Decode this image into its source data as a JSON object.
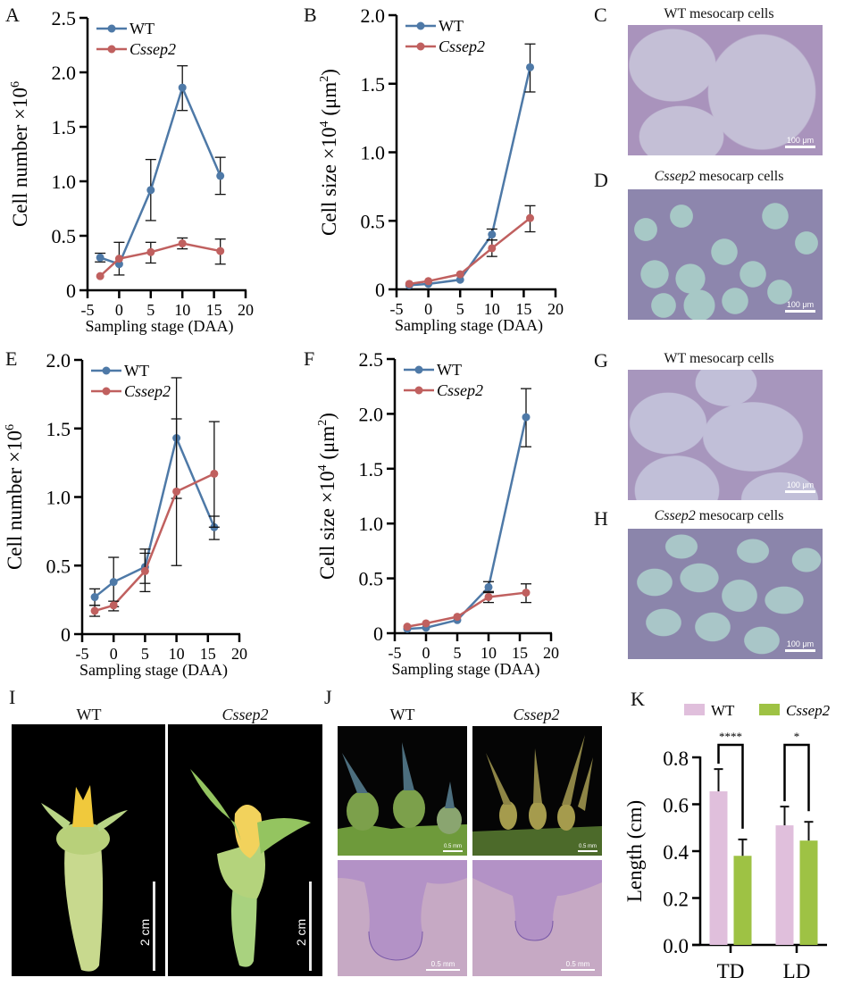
{
  "panels": {
    "A": "A",
    "B": "B",
    "C": "C",
    "D": "D",
    "E": "E",
    "F": "F",
    "G": "G",
    "H": "H",
    "I": "I",
    "J": "J",
    "K": "K"
  },
  "colors": {
    "wt": "#4e79a7",
    "mutant": "#c0605f",
    "bar_wt": "#e0bfdc",
    "bar_mutant": "#9ec244"
  },
  "legend": {
    "wt": "WT",
    "mutant": "Cssep2"
  },
  "micrographs": {
    "C": {
      "title": "WT mesocarp cells",
      "scale": "100 μm"
    },
    "D": {
      "title_italic": "Cssep2",
      "title_rest": " mesocarp cells",
      "scale": "100 μm"
    },
    "G": {
      "title": "WT mesocarp cells",
      "scale": "100 μm"
    },
    "H": {
      "title_italic": "Cssep2",
      "title_rest": " mesocarp cells",
      "scale": "100 μm"
    }
  },
  "photos_I": {
    "wt_label": "WT",
    "mutant_label": "Cssep2",
    "scale": "2 cm"
  },
  "photos_J": {
    "wt_label": "WT",
    "mutant_label": "Cssep2",
    "scale_top": "0.5 mm",
    "scale_bottom": "0.5 mm"
  },
  "chart_data": [
    {
      "id": "A",
      "type": "line",
      "xlabel": "Sampling stage (DAA)",
      "ylabel": "Cell number ×10^6",
      "ylabel_main": "Cell number ×10",
      "ylabel_sup": "6",
      "ylabel_tail": "",
      "xlim": [
        -5,
        20
      ],
      "ylim": [
        0,
        2.5
      ],
      "xticks": [
        -5,
        0,
        5,
        10,
        15,
        20
      ],
      "xtick_labels": [
        "-5",
        "0",
        "5",
        "10",
        "15",
        "20"
      ],
      "yticks": [
        0,
        0.5,
        1.0,
        1.5,
        2.0,
        2.5
      ],
      "ytick_labels": [
        "0",
        "0.5",
        "1.0",
        "1.5",
        "2.0",
        "2.5"
      ],
      "x": [
        -3,
        0,
        5,
        10,
        16
      ],
      "series": [
        {
          "name": "WT",
          "values": [
            0.3,
            0.24,
            0.92,
            1.86,
            1.05
          ],
          "err_low": [
            0.26,
            0.14,
            0.64,
            1.65,
            0.88
          ],
          "err_high": [
            0.34,
            0.44,
            1.2,
            2.06,
            1.22
          ]
        },
        {
          "name": "Cssep2",
          "values": [
            0.13,
            0.29,
            0.35,
            0.43,
            0.36
          ],
          "err_low": [
            0.13,
            0.29,
            0.25,
            0.38,
            0.24
          ],
          "err_high": [
            0.13,
            0.29,
            0.44,
            0.48,
            0.47
          ]
        }
      ],
      "legend_position": "top-left"
    },
    {
      "id": "B",
      "type": "line",
      "xlabel": "Sampling stage (DAA)",
      "ylabel": "Cell size ×10^4 (μm^2)",
      "ylabel_main": "Cell size ×10",
      "ylabel_sup": "4",
      "ylabel_tail": " (μm",
      "ylabel_sup2": "2",
      "ylabel_close": ")",
      "xlim": [
        -5,
        20
      ],
      "ylim": [
        0,
        2.0
      ],
      "xticks": [
        -5,
        0,
        5,
        10,
        15,
        20
      ],
      "xtick_labels": [
        "-5",
        "0",
        "5",
        "10",
        "15",
        "20"
      ],
      "yticks": [
        0,
        0.5,
        1.0,
        1.5,
        2.0
      ],
      "ytick_labels": [
        "0",
        "0.5",
        "1.0",
        "1.5",
        "2.0"
      ],
      "x": [
        -3,
        0,
        5,
        10,
        16
      ],
      "series": [
        {
          "name": "WT",
          "values": [
            0.03,
            0.04,
            0.07,
            0.4,
            1.62
          ],
          "err_low": [
            0.03,
            0.04,
            0.07,
            0.36,
            1.44
          ],
          "err_high": [
            0.03,
            0.04,
            0.07,
            0.44,
            1.79
          ]
        },
        {
          "name": "Cssep2",
          "values": [
            0.04,
            0.06,
            0.11,
            0.3,
            0.52
          ],
          "err_low": [
            0.04,
            0.06,
            0.11,
            0.24,
            0.42
          ],
          "err_high": [
            0.04,
            0.06,
            0.11,
            0.36,
            0.61
          ]
        }
      ],
      "legend_position": "top-left"
    },
    {
      "id": "E",
      "type": "line",
      "xlabel": "Sampling stage (DAA)",
      "ylabel": "Cell number ×10^6",
      "ylabel_main": "Cell number ×10",
      "ylabel_sup": "6",
      "ylabel_tail": "",
      "xlim": [
        -5,
        20
      ],
      "ylim": [
        0,
        2.0
      ],
      "xticks": [
        -5,
        0,
        5,
        10,
        15,
        20
      ],
      "xtick_labels": [
        "-5",
        "0",
        "5",
        "10",
        "15",
        "20"
      ],
      "yticks": [
        0,
        0.5,
        1.0,
        1.5,
        2.0
      ],
      "ytick_labels": [
        "0",
        "0.5",
        "1.0",
        "1.5",
        "2.0"
      ],
      "x": [
        -3,
        0,
        5,
        10,
        16
      ],
      "series": [
        {
          "name": "WT",
          "values": [
            0.27,
            0.38,
            0.49,
            1.43,
            0.78
          ],
          "err_low": [
            0.21,
            0.2,
            0.37,
            0.99,
            0.69
          ],
          "err_high": [
            0.33,
            0.56,
            0.62,
            1.87,
            0.86
          ]
        },
        {
          "name": "Cssep2",
          "values": [
            0.17,
            0.21,
            0.46,
            1.04,
            1.17
          ],
          "err_low": [
            0.13,
            0.17,
            0.31,
            0.5,
            0.78
          ],
          "err_high": [
            0.21,
            0.24,
            0.59,
            1.57,
            1.55
          ]
        }
      ],
      "legend_position": "top-left"
    },
    {
      "id": "F",
      "type": "line",
      "xlabel": "Sampling stage (DAA)",
      "ylabel": "Cell size ×10^4 (μm^2)",
      "ylabel_main": "Cell size ×10",
      "ylabel_sup": "4",
      "ylabel_tail": " (μm",
      "ylabel_sup2": "2",
      "ylabel_close": ")",
      "xlim": [
        -5,
        20
      ],
      "ylim": [
        0,
        2.5
      ],
      "xticks": [
        -5,
        0,
        5,
        10,
        15,
        20
      ],
      "xtick_labels": [
        "-5",
        "0",
        "5",
        "10",
        "15",
        "20"
      ],
      "yticks": [
        0,
        0.5,
        1.0,
        1.5,
        2.0,
        2.5
      ],
      "ytick_labels": [
        "0",
        "0.5",
        "1.0",
        "1.5",
        "2.0",
        "2.5"
      ],
      "x": [
        -3,
        0,
        5,
        10,
        16
      ],
      "series": [
        {
          "name": "WT",
          "values": [
            0.04,
            0.05,
            0.12,
            0.42,
            1.97
          ],
          "err_low": [
            0.04,
            0.05,
            0.12,
            0.37,
            1.7
          ],
          "err_high": [
            0.04,
            0.05,
            0.12,
            0.47,
            2.23
          ]
        },
        {
          "name": "Cssep2",
          "values": [
            0.06,
            0.09,
            0.15,
            0.33,
            0.37
          ],
          "err_low": [
            0.06,
            0.09,
            0.15,
            0.28,
            0.28
          ],
          "err_high": [
            0.06,
            0.09,
            0.15,
            0.38,
            0.45
          ]
        }
      ],
      "legend_position": "top-left"
    },
    {
      "id": "K",
      "type": "bar",
      "xlabel": "",
      "ylabel": "Length (cm)",
      "categories": [
        "TD",
        "LD"
      ],
      "ylim": [
        0,
        0.8
      ],
      "yticks": [
        0,
        0.2,
        0.4,
        0.6,
        0.8
      ],
      "ytick_labels": [
        "0.0",
        "0.2",
        "0.4",
        "0.6",
        "0.8"
      ],
      "series": [
        {
          "name": "WT",
          "values": [
            0.655,
            0.51
          ],
          "err_high": [
            0.75,
            0.59
          ]
        },
        {
          "name": "Cssep2",
          "values": [
            0.38,
            0.445
          ],
          "err_high": [
            0.45,
            0.525
          ]
        }
      ],
      "significance": [
        "****",
        "*"
      ],
      "legend_position": "top"
    }
  ]
}
